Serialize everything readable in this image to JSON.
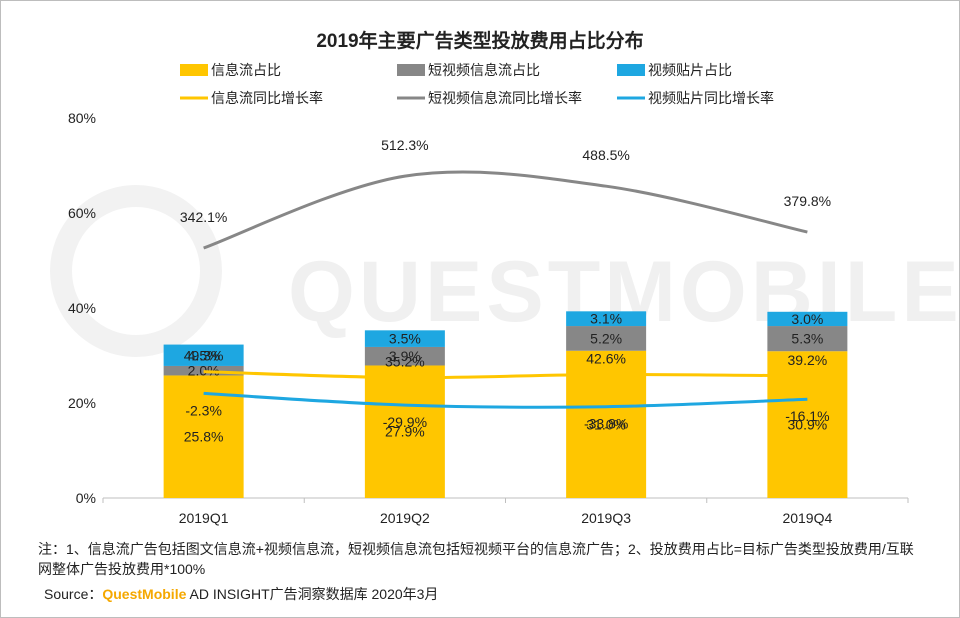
{
  "chart_data": {
    "type": "bar",
    "stacked": true,
    "title": "2019年主要广告类型投放费用占比分布",
    "categories": [
      "2019Q1",
      "2019Q2",
      "2019Q3",
      "2019Q4"
    ],
    "ylim": [
      0,
      80
    ],
    "yticks": [
      "0%",
      "20%",
      "40%",
      "60%",
      "80%"
    ],
    "grid": false,
    "series": [
      {
        "name": "信息流占比",
        "kind": "bar",
        "color": "#ffc600",
        "values": [
          25.8,
          27.9,
          31.0,
          30.9
        ],
        "labels": [
          "25.8%",
          "27.9%",
          "31.0%",
          "30.9%"
        ]
      },
      {
        "name": "短视频信息流占比",
        "kind": "bar",
        "color": "#878787",
        "values": [
          2.0,
          3.9,
          5.2,
          5.3
        ],
        "labels": [
          "2.0%",
          "3.9%",
          "5.2%",
          "5.3%"
        ]
      },
      {
        "name": "视频贴片占比",
        "kind": "bar",
        "color": "#1ea7e1",
        "values": [
          4.5,
          3.5,
          3.1,
          3.0
        ],
        "labels": [
          "4.5%",
          "3.5%",
          "3.1%",
          "3.0%"
        ]
      }
    ],
    "line_series": [
      {
        "name": "信息流同比增长率",
        "kind": "line",
        "color": "#ffc600",
        "values": [
          49.3,
          35.2,
          42.6,
          39.2
        ],
        "labels": [
          "49.3%",
          "35.2%",
          "42.6%",
          "39.2%"
        ]
      },
      {
        "name": "短视频信息流同比增长率",
        "kind": "line",
        "color": "#878787",
        "values": [
          342.1,
          512.3,
          488.5,
          379.8
        ],
        "labels": [
          "342.1%",
          "512.3%",
          "488.5%",
          "379.8%"
        ]
      },
      {
        "name": "视频贴片同比增长率",
        "kind": "line",
        "color": "#1ea7e1",
        "values": [
          -2.3,
          -29.9,
          -33.8,
          -16.1
        ],
        "labels": [
          "-2.3%",
          "-29.9%",
          "-33.8%",
          "-16.1%"
        ]
      }
    ],
    "legend_position": "top"
  },
  "watermark": "QUESTMOBILE",
  "footnote": "注：1、信息流广告包括图文信息流+视频信息流，短视频信息流包括短视频平台的信息流广告；2、投放费用占比=目标广告类型投放费用/互联网整体广告投放费用*100%",
  "source": {
    "prefix": "Source：",
    "brand": "QuestMobile",
    "text": "AD INSIGHT广告洞察数据库 2020年3月"
  }
}
